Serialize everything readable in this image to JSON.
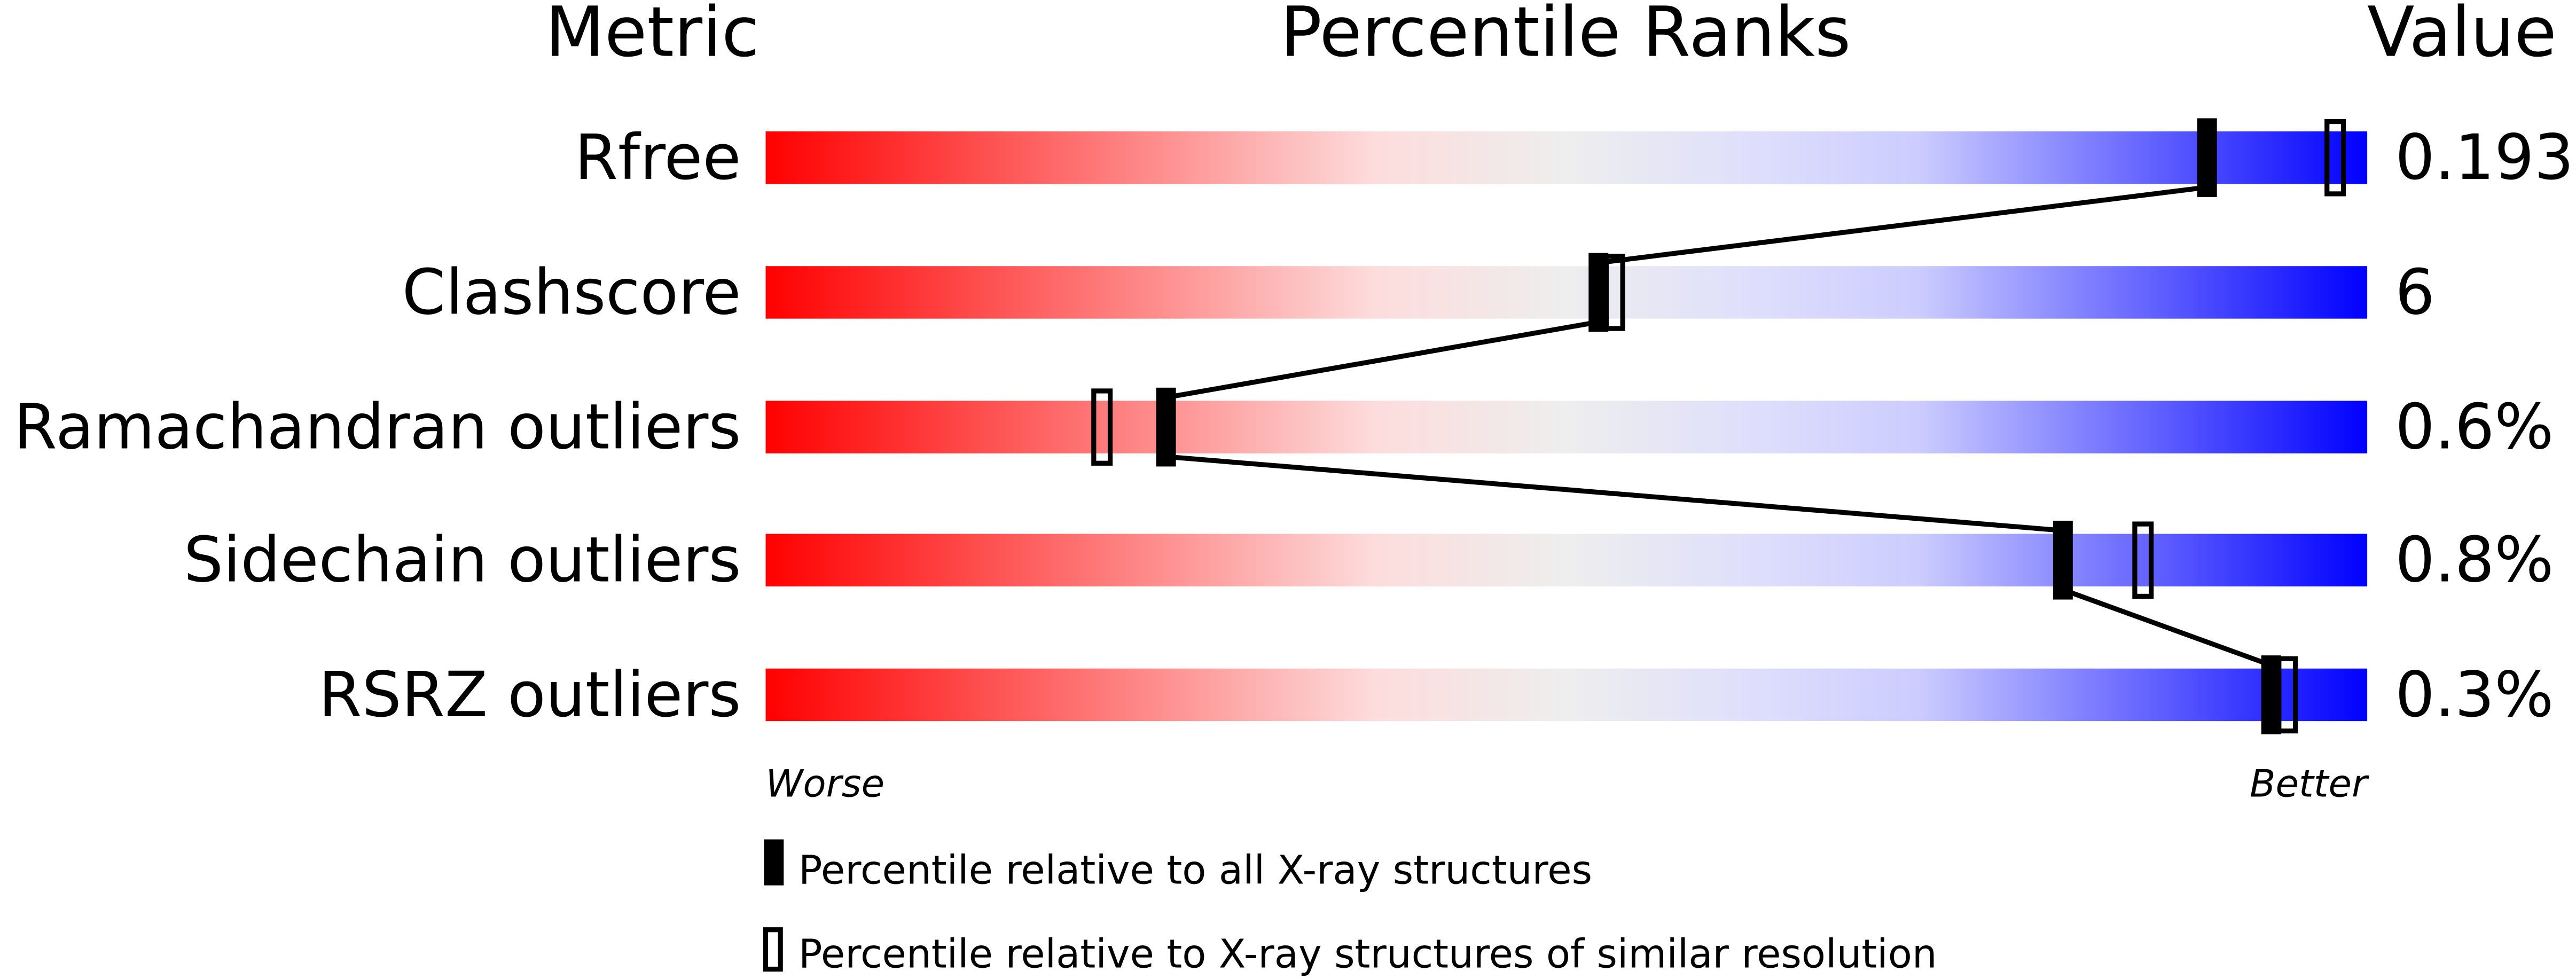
{
  "chart_data": {
    "type": "bar",
    "headers": {
      "metric": "Metric",
      "ranks": "Percentile Ranks",
      "value": "Value"
    },
    "xlim": [
      0,
      100
    ],
    "axis_labels": {
      "left": "Worse",
      "right": "Better"
    },
    "gradient_colors": [
      "#ff0000",
      "#fddcdc",
      "#eeeeee",
      "#dedefc",
      "#ccccff",
      "#0000ff"
    ],
    "rows": [
      {
        "metric": "Rfree",
        "value": "0.193",
        "percentile_all": 90,
        "percentile_similar": 98
      },
      {
        "metric": "Clashscore",
        "value": "6",
        "percentile_all": 52,
        "percentile_similar": 53
      },
      {
        "metric": "Ramachandran outliers",
        "value": "0.6%",
        "percentile_all": 25,
        "percentile_similar": 21
      },
      {
        "metric": "Sidechain outliers",
        "value": "0.8%",
        "percentile_all": 81,
        "percentile_similar": 86
      },
      {
        "metric": "RSRZ outliers",
        "value": "0.3%",
        "percentile_all": 94,
        "percentile_similar": 95
      }
    ],
    "legend": {
      "all": "Percentile relative to all X-ray structures",
      "similar": "Percentile relative to X-ray structures of similar resolution"
    }
  }
}
